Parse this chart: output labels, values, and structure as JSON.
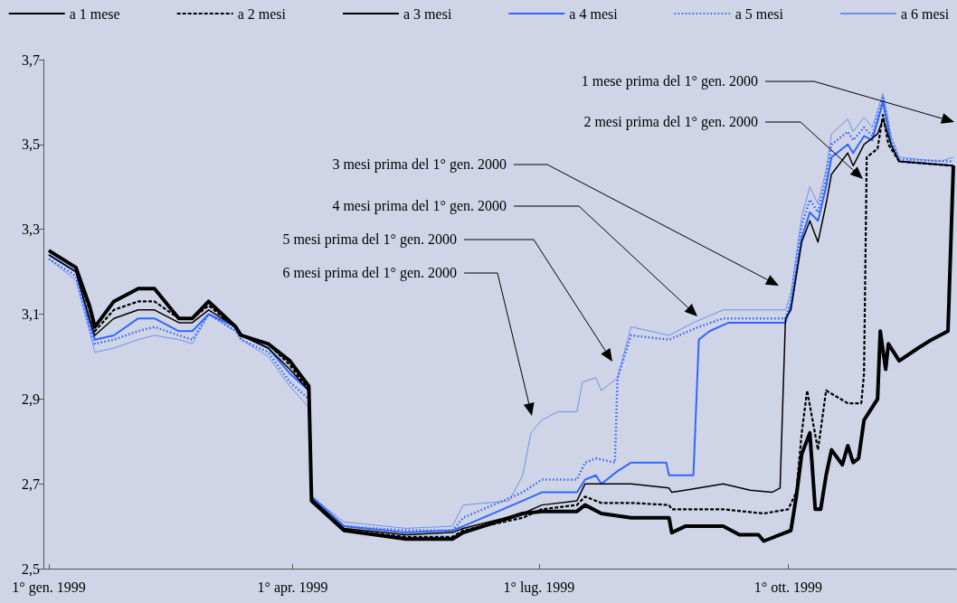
{
  "chart_data": {
    "type": "line",
    "legend": "top",
    "grid": false,
    "marker": "none",
    "xlim": [
      "1998-12-30",
      "1999-12-02"
    ],
    "xticks": [
      {
        "value": "1999-01-01",
        "label": "1° gen. 1999"
      },
      {
        "value": "1999-04-01",
        "label": "1° apr. 1999"
      },
      {
        "value": "1999-07-01",
        "label": "1° lug. 1999"
      },
      {
        "value": "1999-10-01",
        "label": "1° ott. 1999"
      }
    ],
    "ylim": [
      2.5,
      3.7
    ],
    "yticks": [
      {
        "value": 2.5,
        "label": "2,5"
      },
      {
        "value": 2.7,
        "label": "2,7"
      },
      {
        "value": 2.9,
        "label": "2,9"
      },
      {
        "value": 3.1,
        "label": "3,1"
      },
      {
        "value": 3.3,
        "label": "3,3"
      },
      {
        "value": 3.5,
        "label": "3,5"
      },
      {
        "value": 3.7,
        "label": "3,7"
      }
    ],
    "annotations": [
      "1 mese prima del 1° gen. 2000",
      "2 mesi prima del 1° gen. 2000",
      "3 mesi prima del 1° gen. 2000",
      "4 mesi prima del 1° gen. 2000",
      "5 mesi prima del 1° gen. 2000",
      "6 mesi prima del 1° gen. 2000"
    ],
    "series": [
      {
        "name": "a 1 mese",
        "color": "#000000",
        "line_style": "solid",
        "x": [
          "1999-01-01",
          "1999-01-11",
          "1999-01-16",
          "1999-01-18",
          "1999-01-25",
          "1999-02-03",
          "1999-02-09",
          "1999-02-18",
          "1999-02-23",
          "1999-03-01",
          "1999-03-11",
          "1999-03-13",
          "1999-03-23",
          "1999-03-31",
          "1999-04-07",
          "1999-04-08",
          "1999-04-20",
          "1999-05-13",
          "1999-05-30",
          "1999-06-03",
          "1999-06-25",
          "1999-07-02",
          "1999-07-15",
          "1999-07-18",
          "1999-07-24",
          "1999-08-04",
          "1999-08-18",
          "1999-08-19",
          "1999-08-24",
          "1999-09-07",
          "1999-09-13",
          "1999-09-20",
          "1999-09-22",
          "1999-09-30",
          "1999-10-02",
          "1999-10-04",
          "1999-10-06",
          "1999-10-09",
          "1999-10-11",
          "1999-10-13",
          "1999-10-15",
          "1999-10-17",
          "1999-10-21",
          "1999-10-23",
          "1999-10-25",
          "1999-10-27",
          "1999-10-29",
          "1999-10-31",
          "1999-11-03",
          "1999-11-04",
          "1999-11-06",
          "1999-11-07",
          "1999-11-11",
          "1999-11-18",
          "1999-11-23",
          "1999-11-29",
          "1999-12-01"
        ],
        "values": [
          3.25,
          3.21,
          3.12,
          3.07,
          3.13,
          3.16,
          3.16,
          3.09,
          3.09,
          3.13,
          3.07,
          3.05,
          3.03,
          2.99,
          2.93,
          2.66,
          2.59,
          2.57,
          2.57,
          2.585,
          2.63,
          2.635,
          2.635,
          2.65,
          2.63,
          2.62,
          2.62,
          2.585,
          2.6,
          2.6,
          2.58,
          2.58,
          2.565,
          2.585,
          2.59,
          2.67,
          2.77,
          2.82,
          2.64,
          2.64,
          2.72,
          2.78,
          2.745,
          2.79,
          2.75,
          2.76,
          2.85,
          2.87,
          2.9,
          3.06,
          2.97,
          3.03,
          2.99,
          3.02,
          3.04,
          3.06,
          3.45
        ]
      },
      {
        "name": "a 2 mesi",
        "color": "#000000",
        "line_style": "dashed",
        "x": [
          "1999-01-01",
          "1999-01-11",
          "1999-01-16",
          "1999-01-18",
          "1999-01-25",
          "1999-02-03",
          "1999-02-09",
          "1999-02-18",
          "1999-02-23",
          "1999-03-01",
          "1999-03-11",
          "1999-03-13",
          "1999-03-23",
          "1999-03-31",
          "1999-04-07",
          "1999-04-08",
          "1999-04-20",
          "1999-05-13",
          "1999-05-30",
          "1999-06-03",
          "1999-06-25",
          "1999-07-02",
          "1999-07-15",
          "1999-07-18",
          "1999-07-24",
          "1999-08-04",
          "1999-08-18",
          "1999-08-19",
          "1999-09-07",
          "1999-09-22",
          "1999-10-01",
          "1999-10-04",
          "1999-10-06",
          "1999-10-08",
          "1999-10-12",
          "1999-10-15",
          "1999-10-23",
          "1999-10-28",
          "1999-10-29",
          "1999-10-30",
          "1999-11-03",
          "1999-11-05",
          "1999-11-07",
          "1999-11-11",
          "1999-12-01"
        ],
        "values": [
          3.25,
          3.21,
          3.11,
          3.06,
          3.11,
          3.13,
          3.13,
          3.09,
          3.09,
          3.12,
          3.07,
          3.05,
          3.03,
          2.98,
          2.92,
          2.66,
          2.59,
          2.575,
          2.575,
          2.59,
          2.62,
          2.64,
          2.65,
          2.67,
          2.655,
          2.655,
          2.65,
          2.64,
          2.64,
          2.63,
          2.64,
          2.68,
          2.82,
          2.92,
          2.78,
          2.92,
          2.89,
          2.89,
          2.96,
          3.47,
          3.49,
          3.57,
          3.5,
          3.46,
          3.45
        ]
      },
      {
        "name": "a 3 mesi",
        "color": "#000000",
        "line_style": "solid",
        "x": [
          "1999-01-01",
          "1999-01-11",
          "1999-01-16",
          "1999-01-18",
          "1999-01-25",
          "1999-02-03",
          "1999-02-09",
          "1999-02-18",
          "1999-02-23",
          "1999-03-01",
          "1999-03-11",
          "1999-03-13",
          "1999-03-23",
          "1999-03-31",
          "1999-04-07",
          "1999-04-08",
          "1999-04-20",
          "1999-05-13",
          "1999-05-30",
          "1999-06-03",
          "1999-06-25",
          "1999-07-02",
          "1999-07-15",
          "1999-07-18",
          "1999-08-04",
          "1999-08-18",
          "1999-08-19",
          "1999-08-29",
          "1999-09-07",
          "1999-09-17",
          "1999-09-25",
          "1999-09-28",
          "1999-09-30",
          "1999-10-02",
          "1999-10-06",
          "1999-10-09",
          "1999-10-12",
          "1999-10-15",
          "1999-10-17",
          "1999-10-23",
          "1999-10-25",
          "1999-10-29",
          "1999-11-03",
          "1999-11-05",
          "1999-11-08",
          "1999-11-11",
          "1999-12-01"
        ],
        "values": [
          3.24,
          3.2,
          3.09,
          3.05,
          3.09,
          3.11,
          3.11,
          3.08,
          3.08,
          3.11,
          3.07,
          3.05,
          3.02,
          2.97,
          2.92,
          2.665,
          2.595,
          2.58,
          2.585,
          2.595,
          2.63,
          2.65,
          2.66,
          2.7,
          2.7,
          2.69,
          2.68,
          2.69,
          2.7,
          2.685,
          2.68,
          2.69,
          3.09,
          3.11,
          3.27,
          3.32,
          3.27,
          3.36,
          3.43,
          3.48,
          3.45,
          3.5,
          3.525,
          3.56,
          3.5,
          3.46,
          3.45
        ]
      },
      {
        "name": "a 4 mesi",
        "color": "#3366ff",
        "line_style": "solid",
        "x": [
          "1999-01-01",
          "1999-01-11",
          "1999-01-16",
          "1999-01-18",
          "1999-01-25",
          "1999-02-03",
          "1999-02-09",
          "1999-02-18",
          "1999-02-23",
          "1999-03-01",
          "1999-03-11",
          "1999-03-13",
          "1999-03-23",
          "1999-03-31",
          "1999-04-07",
          "1999-04-08",
          "1999-04-20",
          "1999-05-13",
          "1999-05-30",
          "1999-06-03",
          "1999-06-25",
          "1999-07-02",
          "1999-07-15",
          "1999-07-18",
          "1999-07-22",
          "1999-07-24",
          "1999-07-30",
          "1999-08-04",
          "1999-08-17",
          "1999-08-18",
          "1999-08-27",
          "1999-08-29",
          "1999-09-02",
          "1999-09-09",
          "1999-09-30",
          "1999-10-02",
          "1999-10-06",
          "1999-10-09",
          "1999-10-12",
          "1999-10-15",
          "1999-10-17",
          "1999-10-23",
          "1999-10-25",
          "1999-10-29",
          "1999-11-01",
          "1999-11-05",
          "1999-11-08",
          "1999-11-11",
          "1999-12-01"
        ],
        "values": [
          3.24,
          3.2,
          3.08,
          3.04,
          3.05,
          3.09,
          3.09,
          3.06,
          3.06,
          3.1,
          3.07,
          3.05,
          3.02,
          2.96,
          2.92,
          2.67,
          2.6,
          2.585,
          2.59,
          2.6,
          2.66,
          2.68,
          2.68,
          2.71,
          2.72,
          2.7,
          2.73,
          2.75,
          2.75,
          2.72,
          2.72,
          3.04,
          3.06,
          3.08,
          3.08,
          3.12,
          3.28,
          3.34,
          3.32,
          3.4,
          3.47,
          3.5,
          3.48,
          3.52,
          3.51,
          3.6,
          3.5,
          3.46,
          3.45
        ]
      },
      {
        "name": "a 5 mesi",
        "color": "#3366ff",
        "line_style": "dotted",
        "x": [
          "1999-01-01",
          "1999-01-11",
          "1999-01-16",
          "1999-01-18",
          "1999-01-25",
          "1999-02-03",
          "1999-02-09",
          "1999-02-18",
          "1999-02-23",
          "1999-03-01",
          "1999-03-11",
          "1999-03-13",
          "1999-03-23",
          "1999-03-31",
          "1999-04-07",
          "1999-04-08",
          "1999-04-20",
          "1999-05-13",
          "1999-05-30",
          "1999-06-03",
          "1999-06-25",
          "1999-07-02",
          "1999-07-15",
          "1999-07-18",
          "1999-07-22",
          "1999-07-29",
          "1999-07-30",
          "1999-08-04",
          "1999-08-18",
          "1999-08-29",
          "1999-09-07",
          "1999-09-30",
          "1999-10-02",
          "1999-10-06",
          "1999-10-09",
          "1999-10-12",
          "1999-10-15",
          "1999-10-17",
          "1999-10-23",
          "1999-10-25",
          "1999-10-29",
          "1999-11-01",
          "1999-11-05",
          "1999-11-08",
          "1999-11-11",
          "1999-12-01"
        ],
        "values": [
          3.23,
          3.19,
          3.07,
          3.03,
          3.04,
          3.06,
          3.07,
          3.05,
          3.04,
          3.1,
          3.06,
          3.04,
          3.01,
          2.94,
          2.9,
          2.67,
          2.6,
          2.59,
          2.59,
          2.62,
          2.68,
          2.71,
          2.71,
          2.75,
          2.76,
          2.75,
          2.95,
          3.05,
          3.04,
          3.07,
          3.09,
          3.09,
          3.13,
          3.31,
          3.37,
          3.34,
          3.42,
          3.5,
          3.53,
          3.51,
          3.54,
          3.52,
          3.61,
          3.51,
          3.465,
          3.46
        ]
      },
      {
        "name": "a 6 mesi",
        "color": "#6f8ff0",
        "line_style": "solid",
        "x": [
          "1999-01-01",
          "1999-01-11",
          "1999-01-16",
          "1999-01-18",
          "1999-01-25",
          "1999-02-03",
          "1999-02-09",
          "1999-02-18",
          "1999-02-23",
          "1999-03-01",
          "1999-03-11",
          "1999-03-13",
          "1999-03-23",
          "1999-03-31",
          "1999-04-07",
          "1999-04-08",
          "1999-04-20",
          "1999-05-13",
          "1999-05-30",
          "1999-06-03",
          "1999-06-20",
          "1999-06-25",
          "1999-06-28",
          "1999-07-02",
          "1999-07-08",
          "1999-07-15",
          "1999-07-17",
          "1999-07-22",
          "1999-07-24",
          "1999-07-30",
          "1999-08-04",
          "1999-08-18",
          "1999-08-27",
          "1999-09-07",
          "1999-09-30",
          "1999-10-02",
          "1999-10-06",
          "1999-10-09",
          "1999-10-12",
          "1999-10-15",
          "1999-10-17",
          "1999-10-23",
          "1999-10-25",
          "1999-10-29",
          "1999-11-01",
          "1999-11-05",
          "1999-11-08",
          "1999-11-11",
          "1999-11-26",
          "1999-12-01"
        ],
        "values": [
          3.23,
          3.18,
          3.06,
          3.01,
          3.02,
          3.04,
          3.05,
          3.04,
          3.03,
          3.1,
          3.06,
          3.04,
          3.0,
          2.93,
          2.88,
          2.67,
          2.61,
          2.595,
          2.6,
          2.65,
          2.66,
          2.72,
          2.82,
          2.85,
          2.87,
          2.87,
          2.94,
          2.95,
          2.92,
          2.95,
          3.07,
          3.05,
          3.08,
          3.11,
          3.11,
          3.15,
          3.33,
          3.4,
          3.36,
          3.44,
          3.525,
          3.56,
          3.53,
          3.565,
          3.54,
          3.62,
          3.52,
          3.47,
          3.46,
          3.47
        ]
      }
    ]
  }
}
